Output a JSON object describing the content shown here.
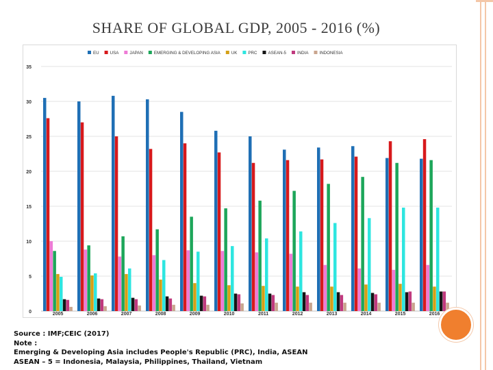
{
  "slide": {
    "title": "SHARE OF GLOBAL GDP, 2005 - 2016 (%)",
    "notes": [
      "Source : IMF;CEIC (2017)",
      "Note :",
      "Emerging & Developing Asia includes People's Republic (PRC), India, ASEAN",
      "ASEAN – 5 = Indonesia, Malaysia, Philippines, Thailand, Vietnam"
    ]
  },
  "chart_data": {
    "type": "bar",
    "categories": [
      "2005",
      "2006",
      "2007",
      "2008",
      "2009",
      "2010",
      "2011",
      "2012",
      "2013",
      "2014",
      "2015",
      "2016"
    ],
    "ylim": [
      0,
      35
    ],
    "yticks": [
      0,
      5,
      10,
      15,
      20,
      25,
      30,
      35
    ],
    "grid": true,
    "legend_position": "top",
    "series": [
      {
        "name": "EU",
        "color": "#1f6fb5",
        "values": [
          30.5,
          30.0,
          30.8,
          30.3,
          28.5,
          25.8,
          25.0,
          23.1,
          23.4,
          23.6,
          21.9,
          21.8
        ]
      },
      {
        "name": "USA",
        "color": "#d7191c",
        "values": [
          27.6,
          27.0,
          25.0,
          23.2,
          24.0,
          22.7,
          21.2,
          21.6,
          21.7,
          22.1,
          24.3,
          24.6
        ]
      },
      {
        "name": "JAPAN",
        "color": "#ee7bd6",
        "values": [
          10.0,
          8.8,
          7.8,
          8.0,
          8.7,
          8.6,
          8.4,
          8.2,
          6.6,
          6.1,
          5.9,
          6.6
        ]
      },
      {
        "name": "EMERGING & DEVELOPING ASIA",
        "color": "#1da65a",
        "values": [
          8.6,
          9.4,
          10.7,
          11.7,
          13.5,
          14.7,
          15.8,
          17.2,
          18.2,
          19.2,
          21.2,
          21.6
        ]
      },
      {
        "name": "UK",
        "color": "#d4a017",
        "values": [
          5.3,
          5.1,
          5.3,
          4.5,
          4.0,
          3.7,
          3.6,
          3.5,
          3.5,
          3.8,
          3.9,
          3.5
        ]
      },
      {
        "name": "PRC",
        "color": "#2ee6e0",
        "values": [
          4.9,
          5.4,
          6.1,
          7.3,
          8.5,
          9.3,
          10.4,
          11.4,
          12.6,
          13.3,
          14.8,
          14.8
        ]
      },
      {
        "name": "ASEAN-5",
        "color": "#151515",
        "values": [
          1.7,
          1.8,
          1.9,
          2.1,
          2.2,
          2.5,
          2.5,
          2.7,
          2.7,
          2.6,
          2.7,
          2.8
        ]
      },
      {
        "name": "INDIA",
        "color": "#c0397e",
        "values": [
          1.6,
          1.7,
          1.7,
          1.8,
          2.1,
          2.4,
          2.3,
          2.3,
          2.3,
          2.4,
          2.8,
          2.8
        ]
      },
      {
        "name": "INDONESIA",
        "color": "#c9a58e",
        "values": [
          0.6,
          0.7,
          0.8,
          0.9,
          0.9,
          1.1,
          1.2,
          1.2,
          1.2,
          1.2,
          1.2,
          1.2
        ]
      }
    ]
  }
}
